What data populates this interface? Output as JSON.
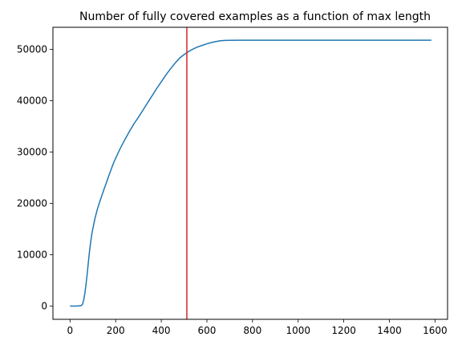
{
  "chart_data": {
    "type": "line",
    "title": "Number of fully covered examples as a function of max length",
    "xlabel": "",
    "ylabel": "",
    "xlim": [
      -75,
      1655
    ],
    "ylim": [
      -2586,
      54318
    ],
    "xticks": [
      0,
      200,
      400,
      600,
      800,
      1000,
      1200,
      1400,
      1600
    ],
    "yticks": [
      0,
      10000,
      20000,
      30000,
      40000,
      50000
    ],
    "grid": false,
    "series": [
      {
        "color": "#1f77b4",
        "x": [
          0,
          30,
          50,
          55,
          60,
          65,
          70,
          75,
          80,
          85,
          90,
          95,
          100,
          110,
          120,
          130,
          140,
          150,
          160,
          170,
          180,
          190,
          200,
          220,
          240,
          260,
          280,
          300,
          320,
          340,
          360,
          380,
          400,
          420,
          440,
          460,
          480,
          500,
          520,
          540,
          560,
          580,
          600,
          620,
          640,
          660,
          680,
          700,
          750,
          800,
          900,
          1000,
          1200,
          1400,
          1584
        ],
        "y": [
          0,
          0,
          100,
          400,
          1200,
          2500,
          4200,
          6200,
          8400,
          10500,
          12300,
          13900,
          15100,
          17200,
          18900,
          20300,
          21600,
          22900,
          24100,
          25400,
          26600,
          27800,
          28800,
          30700,
          32400,
          34000,
          35500,
          36800,
          38200,
          39600,
          41000,
          42400,
          43700,
          45000,
          46200,
          47300,
          48300,
          49000,
          49600,
          50100,
          50500,
          50800,
          51100,
          51350,
          51550,
          51700,
          51760,
          51780,
          51790,
          51800,
          51800,
          51800,
          51800,
          51800,
          51800
        ]
      }
    ],
    "vline": {
      "x": 512,
      "color": "#d62728"
    }
  }
}
